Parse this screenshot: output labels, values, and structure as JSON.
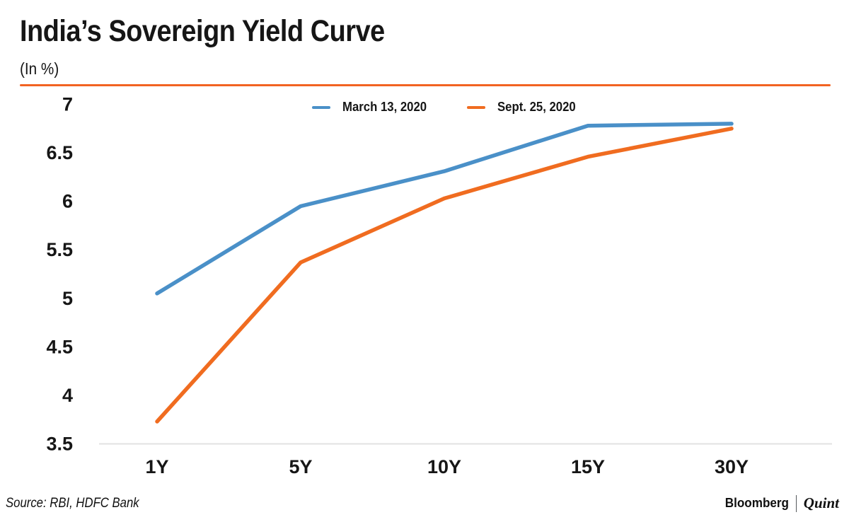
{
  "header": {
    "title": "India’s Sovereign Yield Curve",
    "subtitle": "(In %)"
  },
  "footer": {
    "source": "Source: RBI, HDFC Bank",
    "brand_primary": "Bloomberg",
    "brand_secondary": "Quint"
  },
  "colors": {
    "accent_rule_orange": "#f26322",
    "axis_line_gray": "#e2e2e2",
    "text": "#161616"
  },
  "chart_data": {
    "type": "line",
    "title": "India’s Sovereign Yield Curve",
    "xlabel": "",
    "ylabel": "In %",
    "categories": [
      "1Y",
      "5Y",
      "10Y",
      "15Y",
      "30Y"
    ],
    "series": [
      {
        "name": "March 13, 2020",
        "color": "#4a90c8",
        "values": [
          5.05,
          5.95,
          6.31,
          6.78,
          6.8
        ]
      },
      {
        "name": "Sept. 25, 2020",
        "color": "#f06c20",
        "values": [
          3.73,
          5.37,
          6.03,
          6.46,
          6.75
        ]
      }
    ],
    "ylim": [
      3.5,
      7
    ],
    "y_ticks": [
      7,
      6.5,
      6,
      5.5,
      5,
      4.5,
      4,
      3.5
    ],
    "grid": false,
    "legend_position": "top"
  }
}
